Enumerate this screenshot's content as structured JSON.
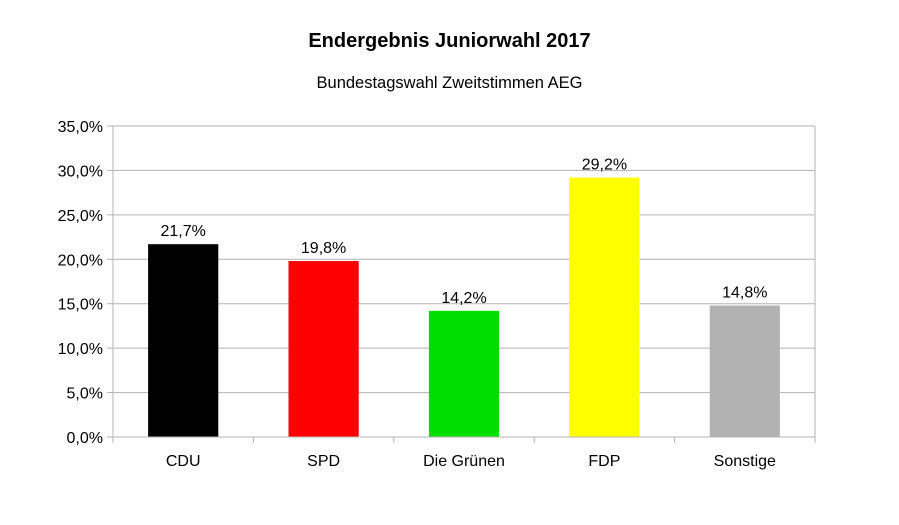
{
  "chart_data": {
    "type": "bar",
    "title": "Endergebnis Juniorwahl 2017",
    "subtitle": "Bundestagswahl Zweitstimmen AEG",
    "xlabel": "",
    "ylabel": "",
    "ylim": [
      0,
      35
    ],
    "ytick_step": 5,
    "ytick_labels": [
      "0,0%",
      "5,0%",
      "10,0%",
      "15,0%",
      "20,0%",
      "25,0%",
      "30,0%",
      "35,0%"
    ],
    "grid": true,
    "legend": "none",
    "categories": [
      "CDU",
      "SPD",
      "Die Grünen",
      "FDP",
      "Sonstige"
    ],
    "values": [
      21.7,
      19.8,
      14.2,
      29.2,
      14.8
    ],
    "value_labels": [
      "21,7%",
      "19,8%",
      "14,2%",
      "29,2%",
      "14,8%"
    ],
    "colors": [
      "#000000",
      "#ff0000",
      "#00dd00",
      "#ffff00",
      "#b2b2b2"
    ]
  }
}
